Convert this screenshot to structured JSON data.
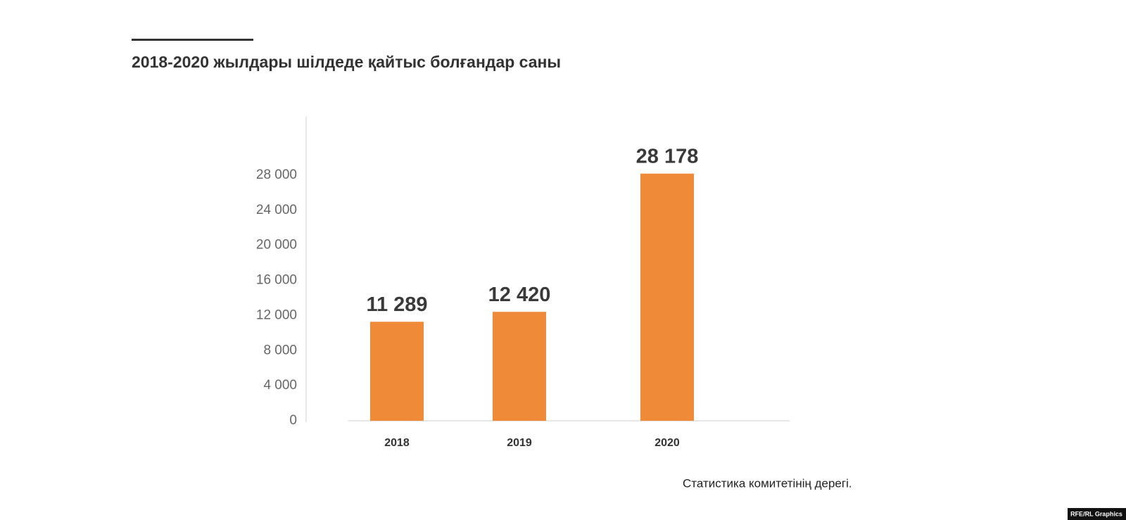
{
  "chart_data": {
    "type": "bar",
    "title": "2018-2020 жылдары шілдеде қайтыс болғандар саны",
    "categories": [
      "2018",
      "2019",
      "2020"
    ],
    "values": [
      11289,
      12420,
      28178
    ],
    "value_labels": [
      "11 289",
      "12 420",
      "28 178"
    ],
    "color": "#ee8a38",
    "ylim": [
      0,
      35000
    ],
    "yticks": [
      0,
      {
        "value": 4000,
        "label": "4 000"
      },
      {
        "value": 8000,
        "label": "8 000"
      },
      {
        "value": 12000,
        "label": "12 000"
      },
      {
        "value": 16000,
        "label": "16 000"
      },
      {
        "value": 20000,
        "label": "20 000"
      },
      {
        "value": 24000,
        "label": "24 000"
      },
      {
        "value": 28000,
        "label": "28 000"
      }
    ],
    "source": "Статистика комитетінің дерегі.",
    "credit": "RFE/RL Graphics"
  }
}
